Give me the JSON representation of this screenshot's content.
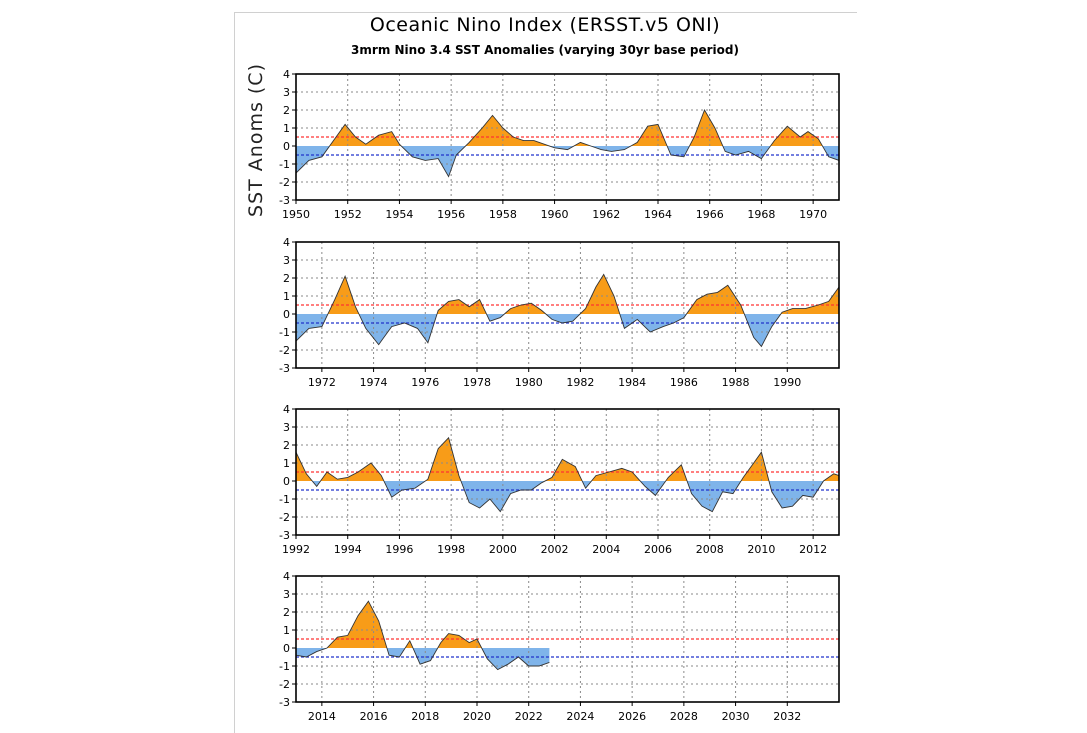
{
  "colors": {
    "warm": "#f89c18",
    "cool": "#7fb4ea",
    "warm_line": "#ff3333",
    "cool_line": "#2233cc",
    "outline": "#333333"
  },
  "chart_data": {
    "type": "area",
    "title": "Oceanic Nino Index (ERSST.v5 ONI)",
    "subtitle": "3mrm Nino 3.4 SST Anomalies (varying 30yr base period)",
    "ylabel": "SST Anoms (C)",
    "ylim": [
      -3,
      4
    ],
    "yticks": [
      "4",
      "3",
      "2",
      "1",
      "0",
      "-1",
      "-2",
      "-3"
    ],
    "thresholds": [
      0.5,
      -0.5
    ],
    "grid": true,
    "panels": [
      {
        "xlim": [
          1950,
          1971
        ],
        "xticks": [
          "1950",
          "1952",
          "1954",
          "1956",
          "1958",
          "1960",
          "1962",
          "1964",
          "1966",
          "1968",
          "1970"
        ],
        "x": [
          1950.0,
          1950.5,
          1951.0,
          1951.5,
          1951.9,
          1952.3,
          1952.7,
          1953.2,
          1953.7,
          1954.0,
          1954.5,
          1955.0,
          1955.5,
          1955.9,
          1956.2,
          1956.7,
          1957.2,
          1957.6,
          1958.0,
          1958.4,
          1958.8,
          1959.2,
          1959.6,
          1960.0,
          1960.5,
          1961.0,
          1961.4,
          1961.8,
          1962.2,
          1962.7,
          1963.2,
          1963.6,
          1964.0,
          1964.5,
          1965.0,
          1965.4,
          1965.8,
          1966.2,
          1966.6,
          1967.0,
          1967.5,
          1968.0,
          1968.5,
          1969.0,
          1969.5,
          1969.8,
          1970.2,
          1970.6,
          1971.0
        ],
        "values": [
          -1.5,
          -0.8,
          -0.6,
          0.4,
          1.2,
          0.5,
          0.1,
          0.6,
          0.8,
          0.1,
          -0.6,
          -0.8,
          -0.7,
          -1.7,
          -0.5,
          0.2,
          1.0,
          1.7,
          1.0,
          0.5,
          0.3,
          0.3,
          0.1,
          -0.1,
          -0.2,
          0.2,
          0.0,
          -0.2,
          -0.3,
          -0.2,
          0.2,
          1.1,
          1.2,
          -0.5,
          -0.6,
          0.5,
          2.0,
          1.0,
          -0.3,
          -0.5,
          -0.3,
          -0.7,
          0.3,
          1.1,
          0.5,
          0.8,
          0.4,
          -0.6,
          -0.8
        ]
      },
      {
        "xlim": [
          1971,
          1992
        ],
        "xticks": [
          "1972",
          "1974",
          "1976",
          "1978",
          "1980",
          "1982",
          "1984",
          "1986",
          "1988",
          "1990"
        ],
        "x": [
          1971.0,
          1971.5,
          1972.0,
          1972.5,
          1972.9,
          1973.3,
          1973.7,
          1974.2,
          1974.7,
          1975.2,
          1975.7,
          1976.1,
          1976.5,
          1976.9,
          1977.3,
          1977.7,
          1978.1,
          1978.5,
          1978.9,
          1979.3,
          1979.7,
          1980.1,
          1980.5,
          1980.9,
          1981.3,
          1981.7,
          1982.2,
          1982.6,
          1982.9,
          1983.3,
          1983.7,
          1984.2,
          1984.7,
          1985.2,
          1985.6,
          1986.0,
          1986.5,
          1986.9,
          1987.3,
          1987.7,
          1988.2,
          1988.7,
          1989.0,
          1989.4,
          1989.8,
          1990.2,
          1990.7,
          1991.2,
          1991.6,
          1992.0
        ],
        "values": [
          -1.5,
          -0.8,
          -0.7,
          0.8,
          2.1,
          0.4,
          -0.8,
          -1.7,
          -0.7,
          -0.5,
          -0.8,
          -1.6,
          0.2,
          0.7,
          0.8,
          0.4,
          0.8,
          -0.4,
          -0.2,
          0.3,
          0.5,
          0.6,
          0.2,
          -0.3,
          -0.5,
          -0.4,
          0.3,
          1.5,
          2.2,
          1.0,
          -0.8,
          -0.3,
          -1.0,
          -0.7,
          -0.5,
          -0.2,
          0.8,
          1.1,
          1.2,
          1.6,
          0.5,
          -1.3,
          -1.8,
          -0.7,
          0.1,
          0.3,
          0.3,
          0.5,
          0.7,
          1.5
        ]
      },
      {
        "xlim": [
          1992,
          2013
        ],
        "xticks": [
          "1992",
          "1994",
          "1996",
          "1998",
          "2000",
          "2002",
          "2004",
          "2006",
          "2008",
          "2010",
          "2012"
        ],
        "x": [
          1992.0,
          1992.4,
          1992.8,
          1993.2,
          1993.6,
          1994.0,
          1994.4,
          1994.9,
          1995.3,
          1995.7,
          1996.1,
          1996.6,
          1997.1,
          1997.5,
          1997.9,
          1998.3,
          1998.7,
          1999.1,
          1999.5,
          1999.9,
          2000.3,
          2000.7,
          2001.1,
          2001.5,
          2001.9,
          2002.3,
          2002.8,
          2003.2,
          2003.6,
          2004.1,
          2004.6,
          2005.0,
          2005.5,
          2005.9,
          2006.4,
          2006.9,
          2007.3,
          2007.7,
          2008.1,
          2008.5,
          2008.9,
          2009.3,
          2009.7,
          2010.0,
          2010.4,
          2010.8,
          2011.2,
          2011.6,
          2012.0,
          2012.4,
          2012.8,
          2013.0
        ],
        "values": [
          1.6,
          0.4,
          -0.3,
          0.5,
          0.1,
          0.2,
          0.5,
          1.0,
          0.3,
          -0.9,
          -0.5,
          -0.4,
          0.1,
          1.8,
          2.4,
          0.3,
          -1.2,
          -1.5,
          -1.0,
          -1.7,
          -0.7,
          -0.5,
          -0.5,
          -0.1,
          0.2,
          1.2,
          0.8,
          -0.4,
          0.3,
          0.5,
          0.7,
          0.5,
          -0.3,
          -0.8,
          0.2,
          0.9,
          -0.7,
          -1.4,
          -1.7,
          -0.6,
          -0.7,
          0.2,
          1.0,
          1.6,
          -0.6,
          -1.5,
          -1.4,
          -0.8,
          -0.9,
          0.0,
          0.4,
          0.3
        ]
      },
      {
        "xlim": [
          2013,
          2034
        ],
        "xticks": [
          "2014",
          "2016",
          "2018",
          "2020",
          "2022",
          "2024",
          "2026",
          "2028",
          "2030",
          "2032"
        ],
        "x": [
          2013.0,
          2013.4,
          2013.8,
          2014.2,
          2014.6,
          2015.0,
          2015.4,
          2015.8,
          2016.2,
          2016.6,
          2017.0,
          2017.4,
          2017.8,
          2018.2,
          2018.6,
          2018.9,
          2019.3,
          2019.7,
          2020.0,
          2020.4,
          2020.8,
          2021.2,
          2021.6,
          2022.0,
          2022.4,
          2022.8
        ],
        "values": [
          -0.4,
          -0.5,
          -0.2,
          0.0,
          0.6,
          0.7,
          1.8,
          2.6,
          1.5,
          -0.4,
          -0.5,
          0.4,
          -0.9,
          -0.7,
          0.3,
          0.8,
          0.7,
          0.3,
          0.5,
          -0.6,
          -1.2,
          -0.9,
          -0.5,
          -1.0,
          -1.0,
          -0.8
        ]
      }
    ]
  }
}
